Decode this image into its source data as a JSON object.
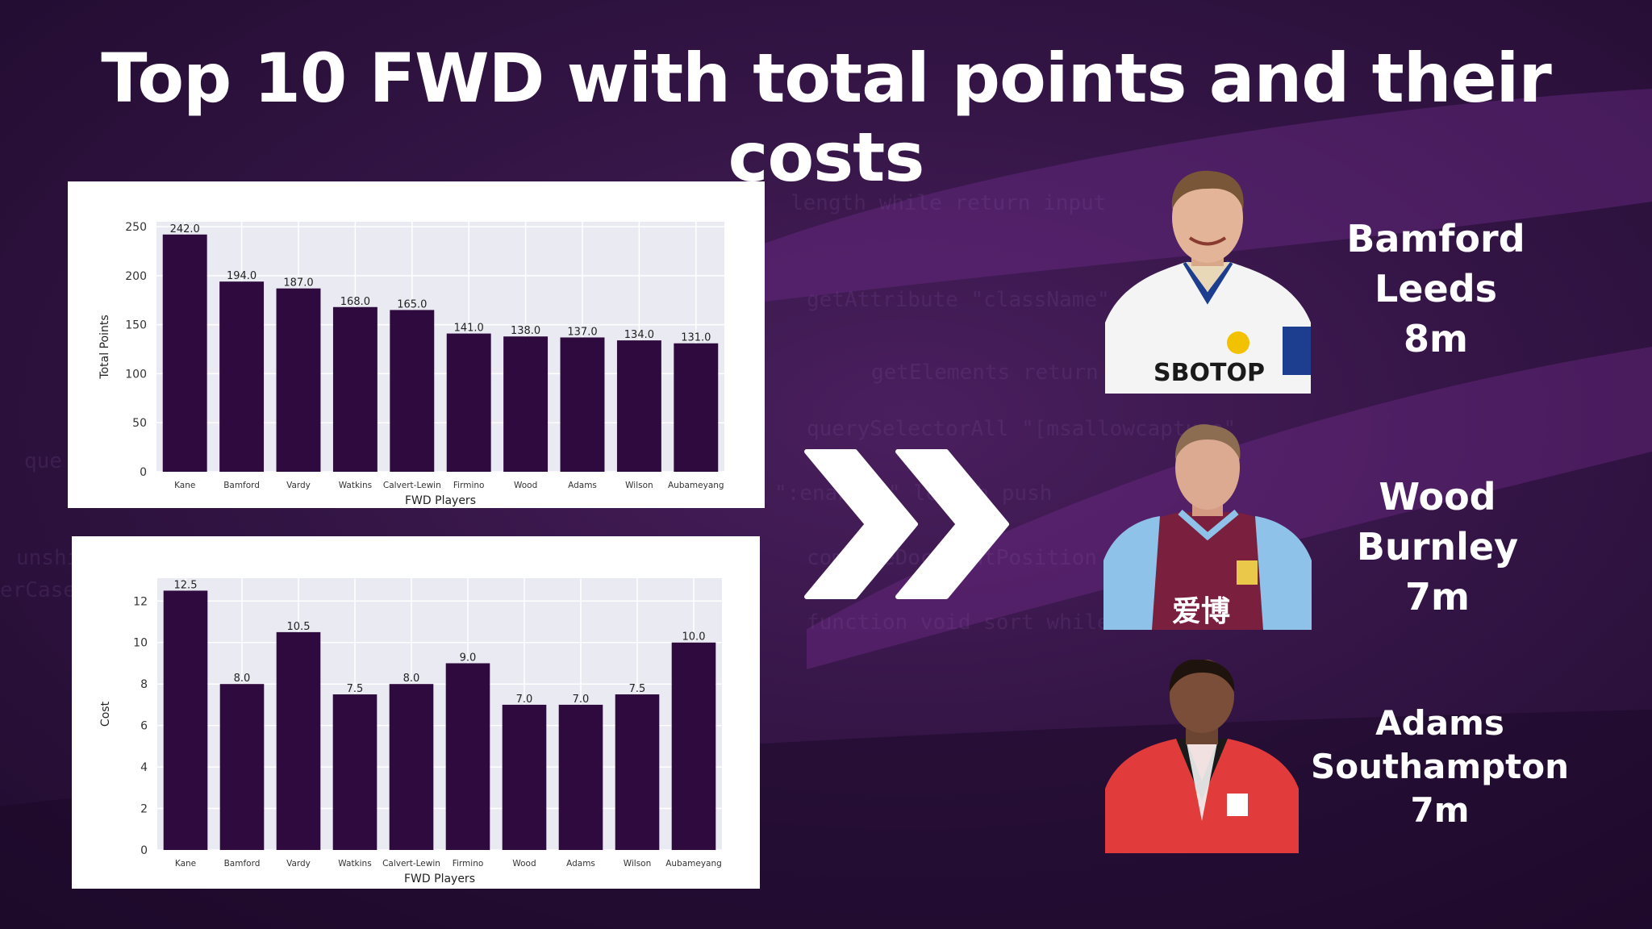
{
  "title": "Top 10 FWD with total points and their costs",
  "colors": {
    "bar": "#2f0a3e",
    "plot_bg": "#eaeaf2",
    "text": "#ffffff"
  },
  "chart_data": [
    {
      "type": "bar",
      "title": "",
      "xlabel": "FWD Players",
      "ylabel": "Total Points",
      "categories": [
        "Kane",
        "Bamford",
        "Vardy",
        "Watkins",
        "Calvert-Lewin",
        "Firmino",
        "Wood",
        "Adams",
        "Wilson",
        "Aubameyang"
      ],
      "values": [
        242,
        194,
        187,
        168,
        165,
        141,
        138,
        137,
        134,
        131
      ],
      "value_labels": [
        "242.0",
        "194.0",
        "187.0",
        "168.0",
        "165.0",
        "141.0",
        "138.0",
        "137.0",
        "134.0",
        "131.0"
      ],
      "ylim": [
        0,
        255
      ],
      "yticks": [
        0,
        50,
        100,
        150,
        200,
        250
      ],
      "grid": true
    },
    {
      "type": "bar",
      "title": "",
      "xlabel": "FWD Players",
      "ylabel": "Cost",
      "categories": [
        "Kane",
        "Bamford",
        "Vardy",
        "Watkins",
        "Calvert-Lewin",
        "Firmino",
        "Wood",
        "Adams",
        "Wilson",
        "Aubameyang"
      ],
      "values": [
        12.5,
        8.0,
        10.5,
        7.5,
        8.0,
        9.0,
        7.0,
        7.0,
        7.5,
        10.0
      ],
      "value_labels": [
        "12.5",
        "8.0",
        "10.5",
        "7.5",
        "8.0",
        "9.0",
        "7.0",
        "7.0",
        "7.5",
        "10.0"
      ],
      "ylim": [
        0,
        13.1
      ],
      "yticks": [
        0,
        2,
        4,
        6,
        8,
        10,
        12
      ],
      "grid": true
    }
  ],
  "players": [
    {
      "name": "Bamford",
      "club": "Leeds",
      "cost": "8m",
      "kit": "leeds-kit"
    },
    {
      "name": "Wood",
      "club": "Burnley",
      "cost": "7m",
      "kit": "burnley-kit"
    },
    {
      "name": "Adams",
      "club": "Southampton",
      "cost": "7m",
      "kit": "southampton-kit"
    }
  ],
  "kit_text": {
    "sponsor_1": "SBOTOP",
    "sponsor_2": "爱博"
  }
}
